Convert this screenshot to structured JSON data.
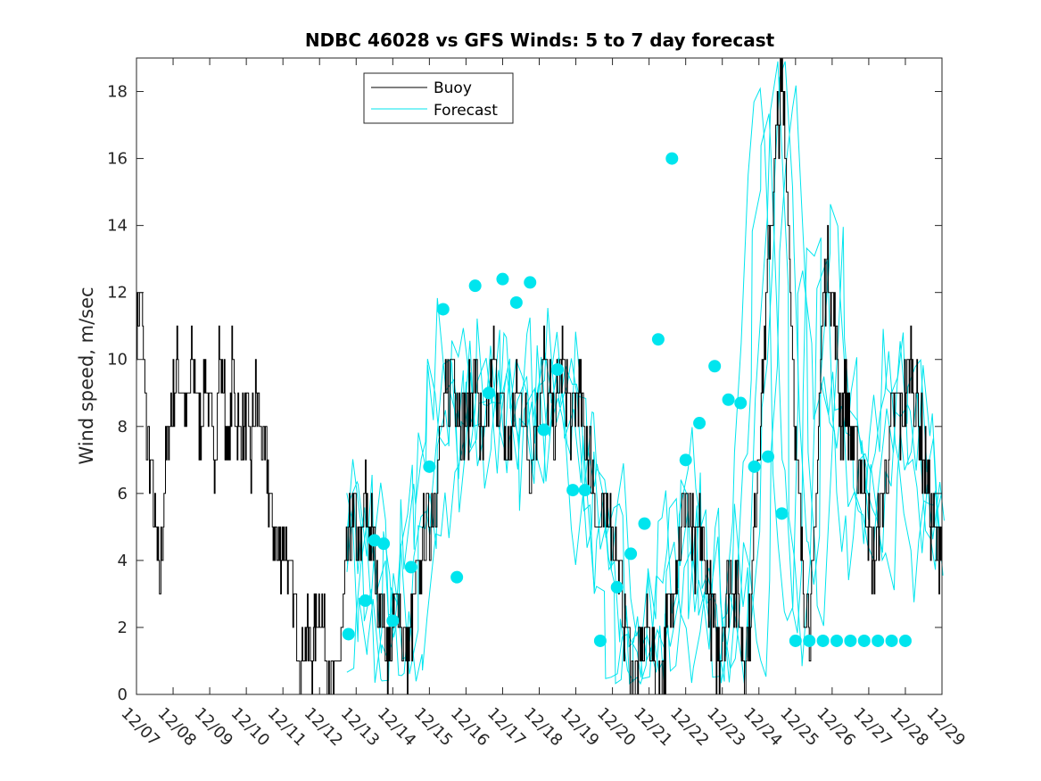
{
  "chart_data": {
    "type": "line",
    "title": "NDBC 46028 vs GFS Winds: 5 to 7 day forecast",
    "xlabel": "",
    "ylabel": "Wind speed, m/sec",
    "ylim": [
      0,
      19
    ],
    "xlim": [
      "12/07",
      "12/29"
    ],
    "x_tick_labels": [
      "12/07",
      "12/08",
      "12/09",
      "12/10",
      "12/11",
      "12/12",
      "12/13",
      "12/14",
      "12/15",
      "12/16",
      "12/17",
      "12/18",
      "12/19",
      "12/20",
      "12/21",
      "12/22",
      "12/23",
      "12/24",
      "12/25",
      "12/26",
      "12/27",
      "12/28",
      "12/29"
    ],
    "y_ticks": [
      0,
      2,
      4,
      6,
      8,
      10,
      12,
      14,
      16,
      18
    ],
    "grid": false,
    "legend": {
      "position": "top-center",
      "entries": [
        "Buoy",
        "Forecast"
      ]
    },
    "colors": {
      "buoy": "#000000",
      "forecast": "#00e5ee"
    },
    "series": [
      {
        "name": "Buoy",
        "x": [
          "12/07 00:00",
          "12/07 03:00",
          "12/07 06:00",
          "12/07 09:00",
          "12/07 12:00",
          "12/07 15:00",
          "12/07 18:00",
          "12/07 21:00",
          "12/08 00:00",
          "12/08 03:00",
          "12/08 06:00",
          "12/08 09:00",
          "12/08 12:00",
          "12/08 15:00",
          "12/08 18:00",
          "12/08 21:00",
          "12/09 00:00",
          "12/09 03:00",
          "12/09 06:00",
          "12/09 09:00",
          "12/09 12:00",
          "12/09 15:00",
          "12/09 18:00",
          "12/09 21:00",
          "12/10 00:00",
          "12/10 03:00",
          "12/10 06:00",
          "12/10 09:00",
          "12/10 12:00",
          "12/10 15:00",
          "12/10 18:00",
          "12/10 21:00",
          "12/11 00:00",
          "12/11 03:00",
          "12/11 06:00",
          "12/11 09:00",
          "12/11 12:00",
          "12/11 15:00",
          "12/11 18:00",
          "12/11 21:00",
          "12/12 00:00",
          "12/12 03:00",
          "12/12 06:00",
          "12/12 09:00",
          "12/12 12:00",
          "12/12 15:00",
          "12/12 18:00",
          "12/12 21:00",
          "12/13 00:00",
          "12/13 03:00",
          "12/13 06:00",
          "12/13 09:00",
          "12/13 12:00",
          "12/13 15:00",
          "12/13 18:00",
          "12/13 21:00",
          "12/14 00:00",
          "12/14 03:00",
          "12/14 06:00",
          "12/14 09:00",
          "12/14 12:00",
          "12/14 15:00",
          "12/14 18:00",
          "12/14 21:00",
          "12/15 00:00",
          "12/15 03:00",
          "12/15 06:00",
          "12/15 09:00",
          "12/15 12:00",
          "12/15 15:00",
          "12/15 18:00",
          "12/15 21:00",
          "12/16 00:00",
          "12/16 03:00",
          "12/16 06:00",
          "12/16 09:00",
          "12/16 12:00",
          "12/16 15:00",
          "12/16 18:00",
          "12/16 21:00",
          "12/17 00:00",
          "12/17 03:00",
          "12/17 06:00",
          "12/17 09:00",
          "12/17 12:00",
          "12/17 15:00",
          "12/17 18:00",
          "12/17 21:00",
          "12/18 00:00",
          "12/18 03:00",
          "12/18 06:00",
          "12/18 09:00",
          "12/18 12:00",
          "12/18 15:00",
          "12/18 18:00",
          "12/18 21:00",
          "12/19 00:00",
          "12/19 03:00",
          "12/19 06:00",
          "12/19 09:00",
          "12/19 12:00",
          "12/19 15:00",
          "12/19 18:00",
          "12/19 21:00",
          "12/20 00:00",
          "12/20 03:00",
          "12/20 06:00",
          "12/20 09:00",
          "12/20 12:00",
          "12/20 15:00",
          "12/20 18:00",
          "12/20 21:00",
          "12/21 00:00",
          "12/21 03:00",
          "12/21 06:00",
          "12/21 09:00",
          "12/21 12:00",
          "12/21 15:00",
          "12/21 18:00",
          "12/21 21:00",
          "12/22 00:00",
          "12/22 03:00",
          "12/22 06:00",
          "12/22 09:00",
          "12/22 12:00",
          "12/22 15:00",
          "12/22 18:00",
          "12/22 21:00",
          "12/23 00:00",
          "12/23 03:00",
          "12/23 06:00",
          "12/23 09:00",
          "12/23 12:00",
          "12/23 15:00",
          "12/23 18:00",
          "12/23 21:00",
          "12/24 00:00",
          "12/24 03:00",
          "12/24 06:00",
          "12/24 09:00",
          "12/24 12:00",
          "12/24 15:00",
          "12/24 18:00",
          "12/24 21:00",
          "12/25 00:00",
          "12/25 03:00",
          "12/25 06:00",
          "12/25 09:00",
          "12/25 12:00",
          "12/25 15:00",
          "12/25 18:00",
          "12/25 21:00",
          "12/26 00:00",
          "12/26 03:00",
          "12/26 06:00",
          "12/26 09:00",
          "12/26 12:00",
          "12/26 15:00",
          "12/26 18:00",
          "12/26 21:00",
          "12/27 00:00",
          "12/27 03:00",
          "12/27 06:00",
          "12/27 09:00",
          "12/27 12:00",
          "12/27 15:00",
          "12/27 18:00",
          "12/27 21:00",
          "12/28 00:00",
          "12/28 03:00",
          "12/28 06:00",
          "12/28 09:00",
          "12/28 12:00",
          "12/28 15:00",
          "12/28 18:00",
          "12/28 21:00",
          "12/29 00:00"
        ],
        "y": [
          11,
          12,
          8,
          7,
          5,
          3,
          6,
          8,
          9,
          10,
          9,
          8,
          10,
          9,
          8,
          10,
          8,
          7,
          10,
          9,
          7,
          10,
          8,
          8,
          8,
          7,
          9,
          8,
          7,
          6,
          5,
          4,
          5,
          4,
          3,
          2,
          1,
          2,
          1,
          2,
          3,
          2,
          1,
          0,
          1,
          2,
          4,
          5,
          5,
          4,
          6,
          5,
          4,
          3,
          2,
          1,
          2,
          3,
          2,
          1,
          2,
          3,
          4,
          5,
          5,
          6,
          7,
          8,
          9,
          10,
          9,
          8,
          8,
          9,
          10,
          8,
          7,
          9,
          10,
          9,
          8,
          7,
          8,
          9,
          9,
          8,
          7,
          8,
          9,
          10,
          9,
          8,
          9,
          10,
          9,
          8,
          9,
          9,
          8,
          7,
          6,
          5,
          5,
          6,
          5,
          4,
          3,
          2,
          1,
          0,
          1,
          2,
          2,
          1,
          0,
          1,
          2,
          3,
          4,
          5,
          6,
          5,
          4,
          5,
          4,
          3,
          2,
          1,
          2,
          3,
          4,
          3,
          2,
          1,
          2,
          5,
          8,
          10,
          13,
          15,
          17,
          18,
          16,
          12,
          7,
          5,
          3,
          2,
          4,
          8,
          12,
          13,
          12,
          10,
          8,
          9,
          8,
          7,
          7,
          6,
          5,
          4,
          5,
          6,
          7,
          8,
          9,
          8,
          9,
          10,
          9,
          8,
          7,
          6,
          5,
          4,
          5
        ],
        "interpolated": true
      },
      {
        "name": "Forecast",
        "marker_points": {
          "x": [
            "12/12 19:00",
            "12/13 06:00",
            "12/13 12:00",
            "12/13 18:00",
            "12/14 00:00",
            "12/14 12:00",
            "12/15 00:00",
            "12/15 09:00",
            "12/15 18:00",
            "12/16 06:00",
            "12/16 15:00",
            "12/17 00:00",
            "12/17 09:00",
            "12/17 18:00",
            "12/18 03:00",
            "12/18 12:00",
            "12/18 22:00",
            "12/19 06:00",
            "12/19 16:00",
            "12/20 03:00",
            "12/20 12:00",
            "12/20 21:00",
            "12/21 06:00",
            "12/21 15:00",
            "12/22 00:00",
            "12/22 09:00",
            "12/22 19:00",
            "12/23 04:00",
            "12/23 12:00",
            "12/23 21:00",
            "12/24 06:00",
            "12/24 15:00",
            "12/25 00:00",
            "12/25 09:00",
            "12/25 18:00",
            "12/26 03:00",
            "12/26 12:00",
            "12/26 21:00",
            "12/27 06:00",
            "12/27 15:00",
            "12/28 00:00"
          ],
          "y": [
            1.8,
            2.8,
            4.6,
            4.5,
            2.2,
            3.8,
            6.8,
            11.5,
            3.5,
            12.2,
            9.0,
            12.4,
            11.7,
            12.3,
            7.9,
            9.7,
            6.1,
            6.1,
            1.6,
            3.2,
            4.2,
            5.1,
            10.6,
            16.0,
            7.0,
            8.1,
            9.8,
            8.8,
            8.7,
            6.8,
            7.1,
            5.4,
            1.6,
            1.6,
            1.6,
            1.6,
            1.6,
            1.6,
            1.6,
            1.6,
            1.6
          ]
        }
      }
    ]
  }
}
